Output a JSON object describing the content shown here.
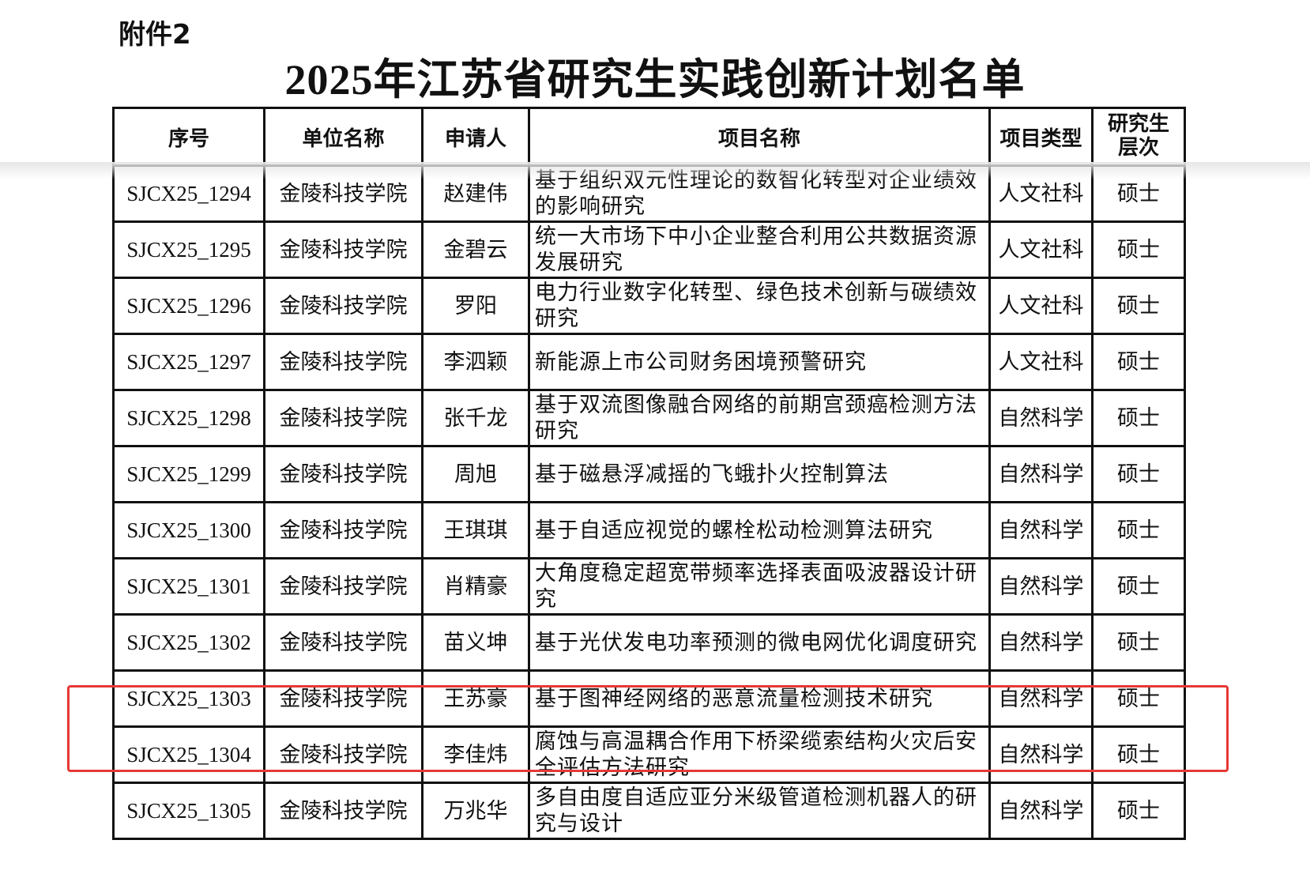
{
  "header": {
    "attachment": "附件2",
    "title": "2025年江苏省研究生实践创新计划名单"
  },
  "table": {
    "columns": [
      "序号",
      "单位名称",
      "申请人",
      "项目名称",
      "项目类型",
      "研究生层次"
    ],
    "rows": [
      [
        "SJCX25_1294",
        "金陵科技学院",
        "赵建伟",
        "基于组织双元性理论的数智化转型对企业绩效的影响研究",
        "人文社科",
        "硕士"
      ],
      [
        "SJCX25_1295",
        "金陵科技学院",
        "金碧云",
        "统一大市场下中小企业整合利用公共数据资源发展研究",
        "人文社科",
        "硕士"
      ],
      [
        "SJCX25_1296",
        "金陵科技学院",
        "罗阳",
        "电力行业数字化转型、绿色技术创新与碳绩效研究",
        "人文社科",
        "硕士"
      ],
      [
        "SJCX25_1297",
        "金陵科技学院",
        "李泗颖",
        "新能源上市公司财务困境预警研究",
        "人文社科",
        "硕士"
      ],
      [
        "SJCX25_1298",
        "金陵科技学院",
        "张千龙",
        "基于双流图像融合网络的前期宫颈癌检测方法研究",
        "自然科学",
        "硕士"
      ],
      [
        "SJCX25_1299",
        "金陵科技学院",
        "周旭",
        "基于磁悬浮减摇的飞蛾扑火控制算法",
        "自然科学",
        "硕士"
      ],
      [
        "SJCX25_1300",
        "金陵科技学院",
        "王琪琪",
        "基于自适应视觉的螺栓松动检测算法研究",
        "自然科学",
        "硕士"
      ],
      [
        "SJCX25_1301",
        "金陵科技学院",
        "肖精豪",
        "大角度稳定超宽带频率选择表面吸波器设计研究",
        "自然科学",
        "硕士"
      ],
      [
        "SJCX25_1302",
        "金陵科技学院",
        "苗义坤",
        "基于光伏发电功率预测的微电网优化调度研究",
        "自然科学",
        "硕士"
      ],
      [
        "SJCX25_1303",
        "金陵科技学院",
        "王苏豪",
        "基于图神经网络的恶意流量检测技术研究",
        "自然科学",
        "硕士"
      ],
      [
        "SJCX25_1304",
        "金陵科技学院",
        "李佳炜",
        "腐蚀与高温耦合作用下桥梁缆索结构火灾后安全评估方法研究",
        "自然科学",
        "硕士"
      ],
      [
        "SJCX25_1305",
        "金陵科技学院",
        "万兆华",
        "多自由度自适应亚分米级管道检测机器人的研究与设计",
        "自然科学",
        "硕士"
      ]
    ]
  }
}
